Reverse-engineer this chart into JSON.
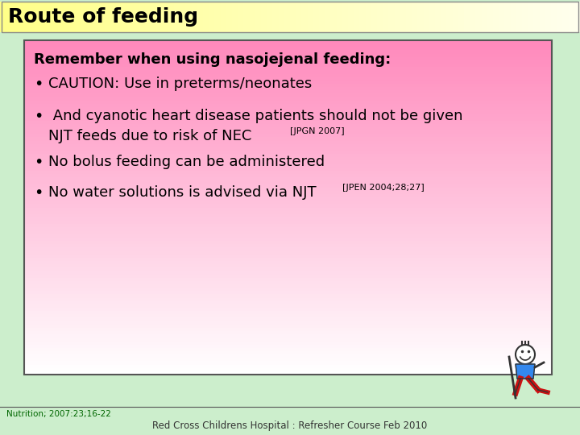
{
  "title": "Route of feeding",
  "title_bg_left": "#ffff88",
  "title_bg_right": "#eeffee",
  "title_color": "#000000",
  "slide_bg": "#cceecc",
  "box_bg_top": "#ff88bb",
  "box_bg_bottom": "#ffffff",
  "box_border": "#555555",
  "subtitle": "Remember when using nasojejenal feeding:",
  "footer_left": "Nutrition; 2007:23;16-22",
  "footer_center": "Red Cross Childrens Hospital : Refresher Course Feb 2010",
  "footer_color": "#006600"
}
